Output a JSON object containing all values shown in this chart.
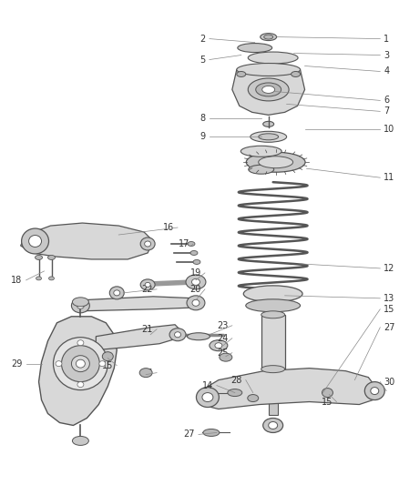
{
  "bg_color": "#ffffff",
  "fig_width": 4.38,
  "fig_height": 5.33,
  "dpi": 100,
  "line_color": "#888888",
  "label_color": "#333333",
  "label_fontsize": 7.0,
  "ec": "#555555",
  "fc_light": "#d8d8d8",
  "fc_mid": "#c8c8c8",
  "fc_dark": "#b8b8b8",
  "fc_white": "#ffffff"
}
